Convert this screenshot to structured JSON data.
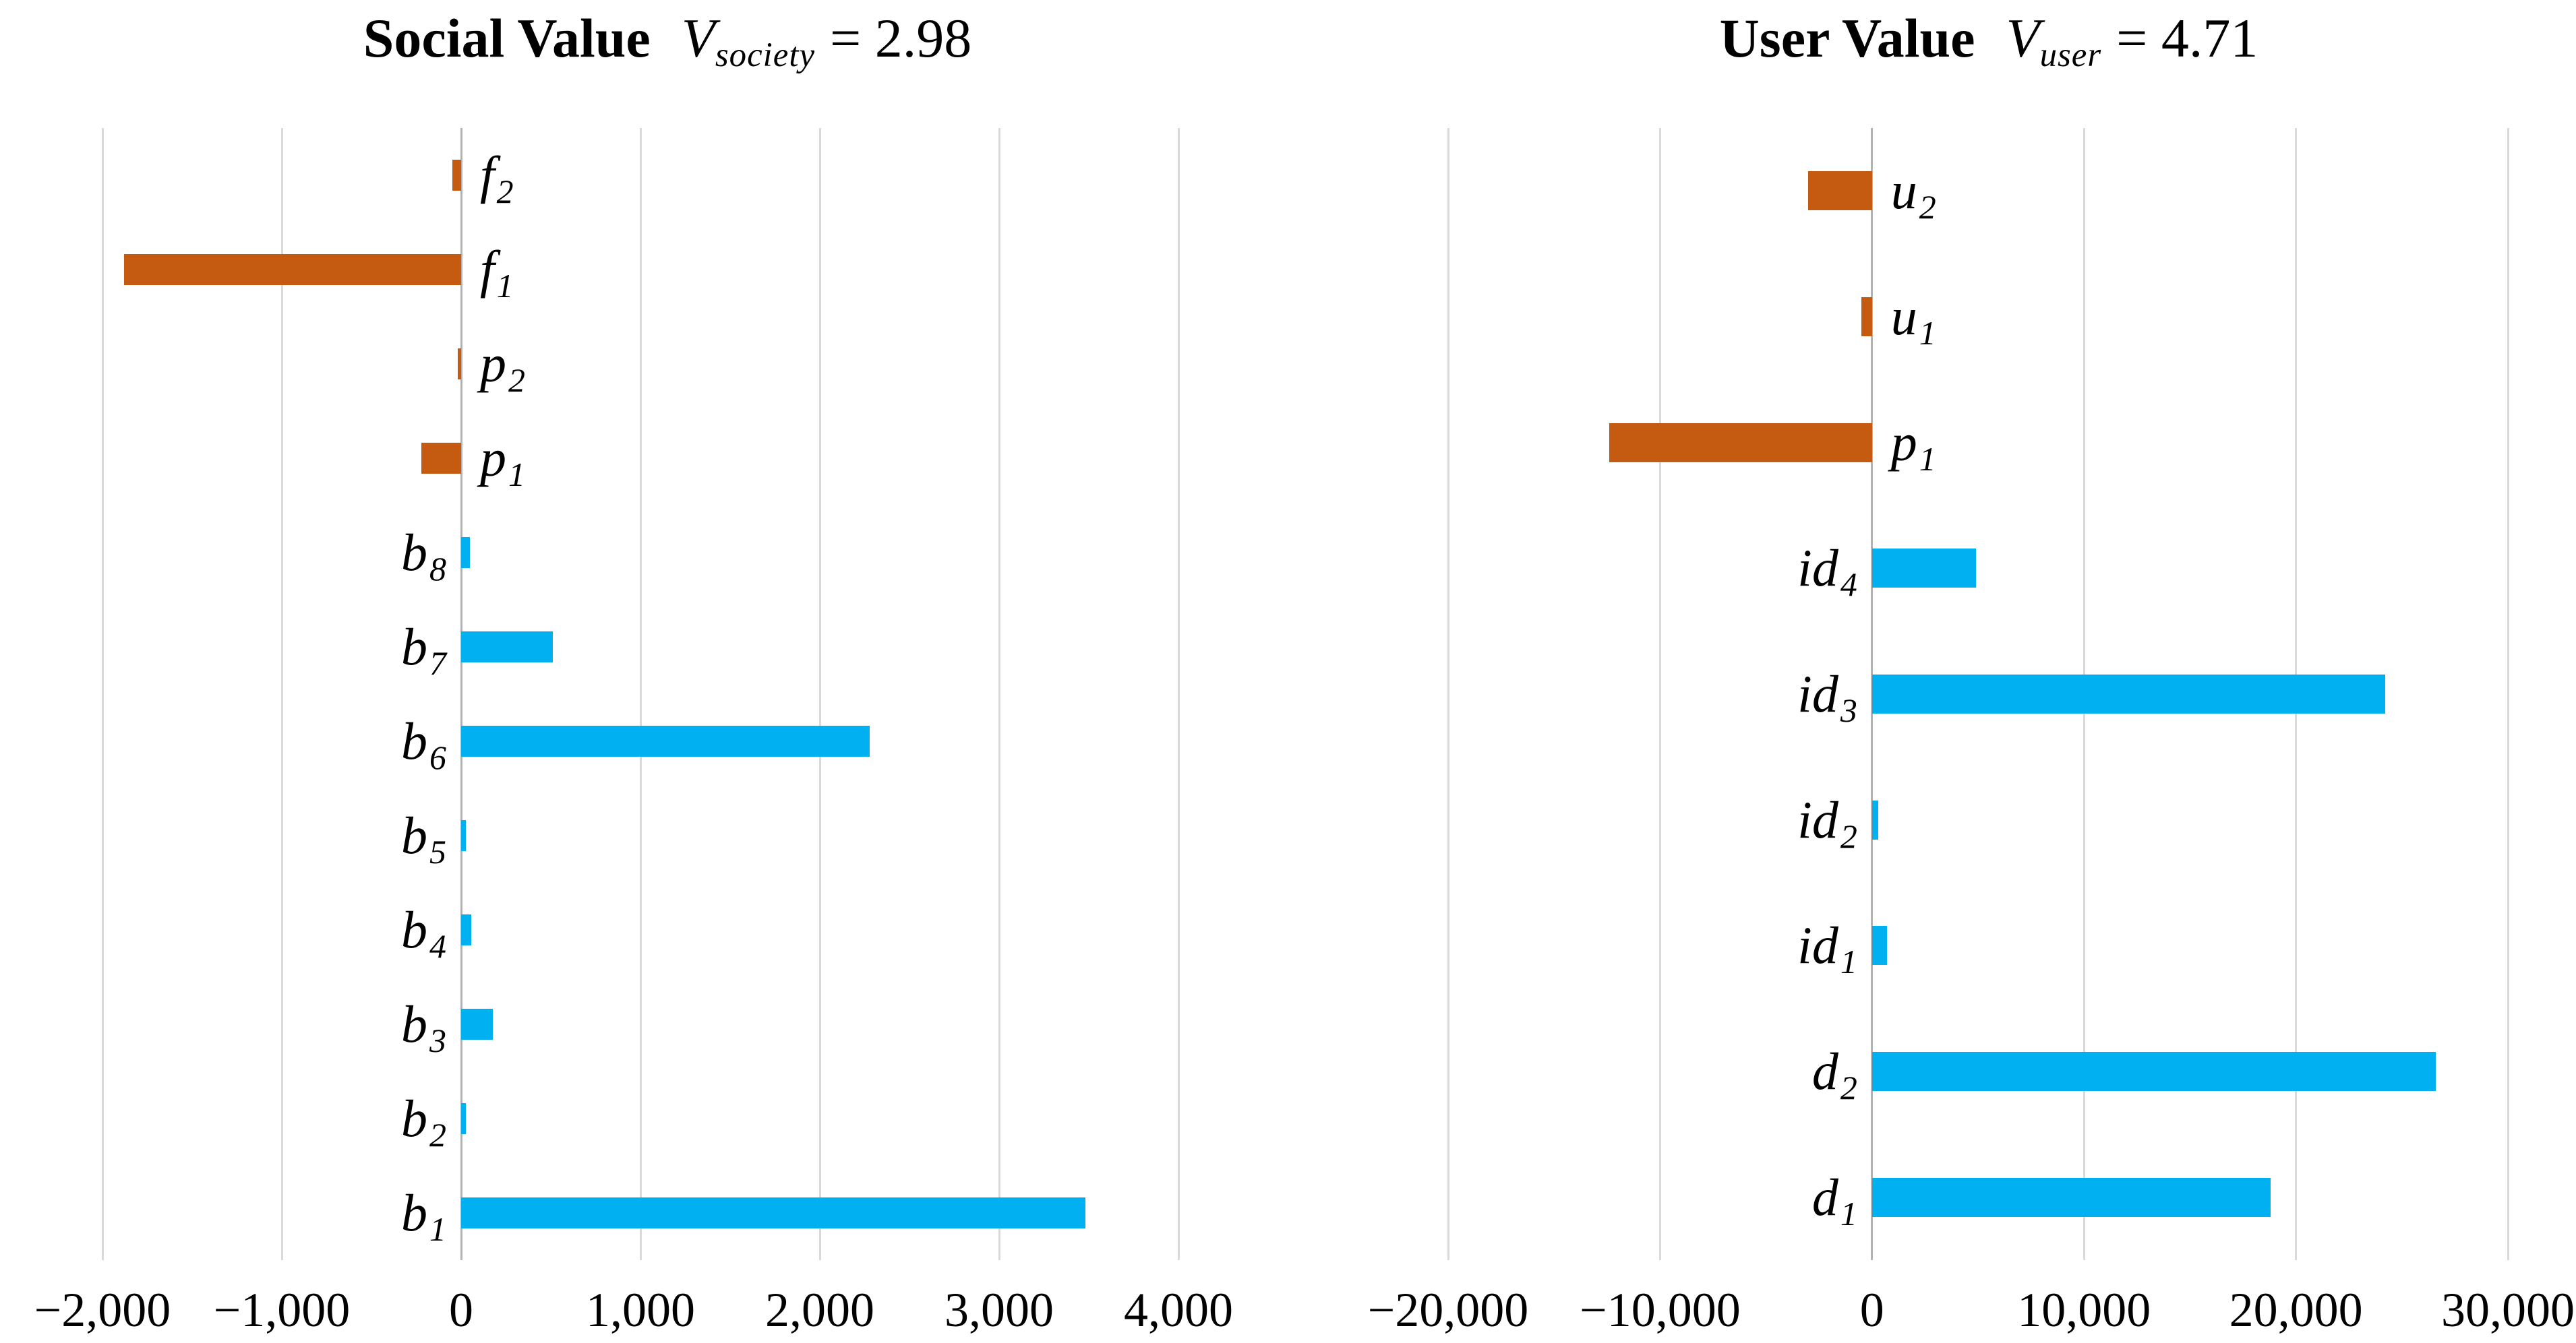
{
  "page": {
    "background": "#ffffff"
  },
  "chart_data": [
    {
      "type": "bar",
      "orientation": "horizontal",
      "title": {
        "name": "Social Value",
        "var": "V",
        "sub": "society",
        "rhs": "= 2.98"
      },
      "categories": [
        {
          "base": "f",
          "sub": "2"
        },
        {
          "base": "f",
          "sub": "1"
        },
        {
          "base": "p",
          "sub": "2"
        },
        {
          "base": "p",
          "sub": "1"
        },
        {
          "base": "b",
          "sub": "8"
        },
        {
          "base": "b",
          "sub": "7"
        },
        {
          "base": "b",
          "sub": "6"
        },
        {
          "base": "b",
          "sub": "5"
        },
        {
          "base": "b",
          "sub": "4"
        },
        {
          "base": "b",
          "sub": "3"
        },
        {
          "base": "b",
          "sub": "2"
        },
        {
          "base": "b",
          "sub": "1"
        }
      ],
      "values": [
        -50,
        -1880,
        -20,
        -220,
        50,
        510,
        2280,
        25,
        55,
        175,
        25,
        3480
      ],
      "xlim": [
        -2000,
        4000
      ],
      "xticks": [
        -2000,
        -1000,
        0,
        1000,
        2000,
        3000,
        4000
      ],
      "xtick_labels": [
        "−2,000",
        "−1,000",
        "0",
        "1,000",
        "2,000",
        "3,000",
        "4,000"
      ],
      "positive_color": "#00B0F0",
      "negative_color": "#C55A11",
      "grid": true,
      "legend": false
    },
    {
      "type": "bar",
      "orientation": "horizontal",
      "title": {
        "name": "User Value",
        "var": "V",
        "sub": "user",
        "rhs": "= 4.71"
      },
      "categories": [
        {
          "base": "u",
          "sub": "2"
        },
        {
          "base": "u",
          "sub": "1"
        },
        {
          "base": "p",
          "sub": "1"
        },
        {
          "base": "id",
          "sub": "4"
        },
        {
          "base": "id",
          "sub": "3"
        },
        {
          "base": "id",
          "sub": "2"
        },
        {
          "base": "id",
          "sub": "1"
        },
        {
          "base": "d",
          "sub": "2"
        },
        {
          "base": "d",
          "sub": "1"
        }
      ],
      "values": [
        -3000,
        -500,
        -12400,
        4900,
        24200,
        300,
        700,
        26600,
        18800
      ],
      "xlim": [
        -20000,
        30000
      ],
      "xticks": [
        -20000,
        -10000,
        0,
        10000,
        20000,
        30000
      ],
      "xtick_labels": [
        "−20,000",
        "−10,000",
        "0",
        "10,000",
        "20,000",
        "30,000"
      ],
      "positive_color": "#00B0F0",
      "negative_color": "#C55A11",
      "grid": true,
      "legend": false
    }
  ]
}
